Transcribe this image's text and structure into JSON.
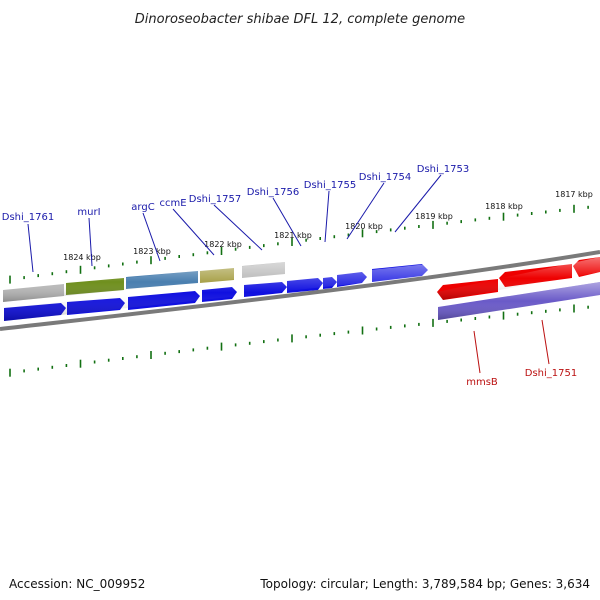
{
  "title": "Dinoroseobacter shibae DFL 12, complete genome",
  "footer": {
    "accession": "Accession: NC_009952",
    "summary": "Topology: circular; Length: 3,789,584 bp; Genes: 3,634"
  },
  "colors": {
    "forward_gene": "#1010e0",
    "reverse_gene": "#ee0000",
    "forward_label": "#1a1aaa",
    "reverse_label": "#bb1111",
    "tick": "#127012",
    "backbone": "#7a7a7a",
    "rna_gray": "#b9b9b9",
    "rna_green": "#6f8f1e",
    "rna_blue": "#4a7fb0",
    "rna_khaki": "#a9a24c",
    "reverse_rna": "#6a5ac8"
  },
  "scale_labels": [
    "1824 kbp",
    "1823 kbp",
    "1822 kbp",
    "1821 kbp",
    "1820 kbp",
    "1819 kbp",
    "1818 kbp",
    "1817 kbp"
  ],
  "genes_forward": [
    "Dshi_1761",
    "murI",
    "argC",
    "ccmE",
    "Dshi_1757",
    "Dshi_1756",
    "Dshi_1755",
    "Dshi_1754",
    "Dshi_1753"
  ],
  "genes_reverse": [
    "mmsB",
    "Dshi_1751"
  ]
}
